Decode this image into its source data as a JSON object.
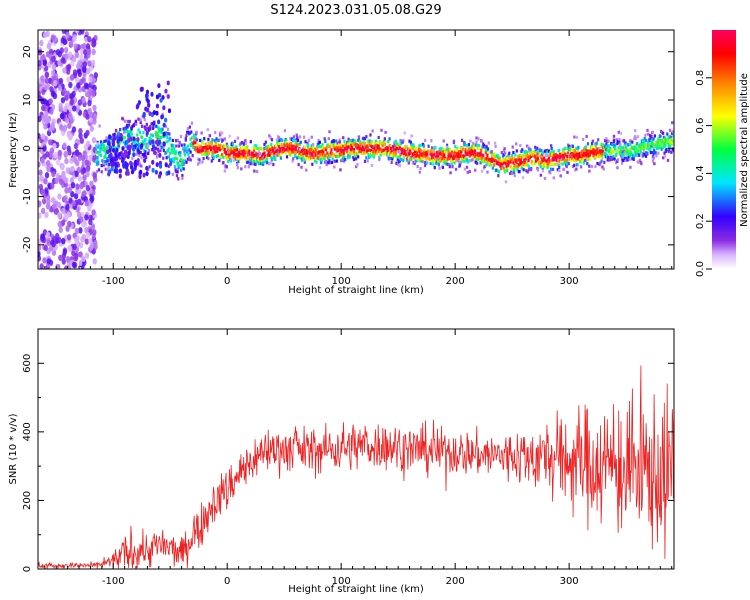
{
  "figure": {
    "title": "S124.2023.031.05.08.G29",
    "colors": {
      "background": "#ffffff",
      "snr_line": "#ee2222",
      "axis": "#000000"
    }
  },
  "chart_data": [
    {
      "type": "heatmap",
      "xlabel": "Height of straight line (km)",
      "ylabel": "Frequency (Hz)",
      "xlim": [
        -166,
        392
      ],
      "ylim": [
        -25,
        24.5
      ],
      "xticks": [
        -100,
        0,
        100,
        200,
        300
      ],
      "yticks": [
        -20,
        -10,
        0,
        10,
        20
      ],
      "colorbar": {
        "label": "Normalized spectral amplitude",
        "range": [
          0,
          1
        ],
        "ticks": [
          "0.0",
          "0.2",
          "0.4",
          "0.6",
          "0.8"
        ],
        "tick_values": [
          0.0,
          0.2,
          0.4,
          0.6,
          0.8
        ],
        "colormap": "rainbow (white-violet-blue-cyan-green-yellow-red-magenta)"
      },
      "noise_region_x": [
        -166,
        -115
      ],
      "ridge": {
        "x": [
          -115,
          -100,
          -90,
          -80,
          -70,
          -60,
          -50,
          -45,
          -40,
          -35,
          -30,
          -25,
          -20,
          -10,
          0,
          10,
          20,
          30,
          40,
          50,
          60,
          70,
          80,
          90,
          100,
          110,
          120,
          130,
          140,
          150,
          160,
          170,
          180,
          190,
          200,
          210,
          220,
          230,
          240,
          250,
          260,
          270,
          280,
          290,
          300,
          310,
          320,
          330,
          340,
          350,
          360,
          370,
          380,
          392
        ],
        "freq": [
          -1,
          -0.5,
          2,
          2.5,
          1,
          3,
          0,
          -2,
          -3,
          0.5,
          1.5,
          -0.5,
          0,
          0,
          -1,
          -1,
          -1,
          -1.5,
          -0.5,
          0,
          0,
          -1,
          -1,
          -0.5,
          -0.5,
          0,
          0,
          0,
          0,
          -0.5,
          -1,
          -1,
          -1.5,
          -1.5,
          -1.5,
          -1,
          -1,
          -2,
          -3.5,
          -3,
          -2.5,
          -2,
          -2.5,
          -2,
          -1.5,
          -1.5,
          -1,
          -0.5,
          -0.5,
          -0.5,
          0,
          0.5,
          1,
          1.5
        ]
      }
    },
    {
      "type": "line",
      "xlabel": "Height of straight line (km)",
      "ylabel": "SNR (10 * v/v)",
      "xlim": [
        -166,
        392
      ],
      "ylim": [
        0,
        700
      ],
      "xticks": [
        -100,
        0,
        100,
        200,
        300
      ],
      "yticks": [
        0,
        200,
        400,
        600
      ],
      "series": [
        {
          "x": [
            -166,
            -120,
            -110,
            -100,
            -90,
            -80,
            -70,
            -60,
            -50,
            -40,
            -30,
            -20,
            -10,
            0,
            10,
            20,
            30,
            40,
            60,
            80,
            100,
            120,
            140,
            160,
            180,
            200,
            220,
            240,
            260,
            280,
            300,
            320,
            340,
            360,
            380,
            392
          ],
          "mean": [
            10,
            10,
            12,
            25,
            45,
            60,
            55,
            70,
            60,
            45,
            100,
            150,
            200,
            230,
            280,
            310,
            340,
            350,
            350,
            345,
            355,
            360,
            360,
            350,
            345,
            340,
            335,
            330,
            330,
            325,
            320,
            310,
            300,
            290,
            280,
            270
          ],
          "spread": [
            8,
            8,
            10,
            25,
            45,
            55,
            50,
            50,
            45,
            40,
            55,
            60,
            60,
            60,
            60,
            60,
            60,
            60,
            60,
            60,
            65,
            65,
            65,
            65,
            65,
            60,
            60,
            65,
            80,
            100,
            130,
            160,
            180,
            200,
            210,
            210
          ]
        }
      ]
    }
  ]
}
